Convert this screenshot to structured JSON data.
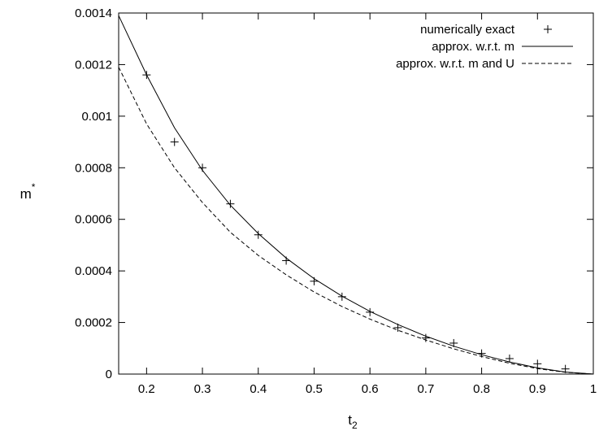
{
  "chart_data": {
    "type": "line",
    "xlabel": "t2",
    "ylabel": "m*",
    "xlim": [
      0.15,
      1
    ],
    "ylim": [
      0,
      0.0014
    ],
    "xticks": [
      "0.2",
      "0.3",
      "0.4",
      "0.5",
      "0.6",
      "0.7",
      "0.8",
      "0.9",
      "1"
    ],
    "yticks": [
      "0",
      "0.0002",
      "0.0004",
      "0.0006",
      "0.0008",
      "0.001",
      "0.0012",
      "0.0014"
    ],
    "legend_position": "top-right",
    "grid": false,
    "series": [
      {
        "name": "numerically exact",
        "style": "points-plus",
        "x": [
          0.2,
          0.25,
          0.3,
          0.35,
          0.4,
          0.45,
          0.5,
          0.55,
          0.6,
          0.65,
          0.7,
          0.75,
          0.8,
          0.85,
          0.9,
          0.95
        ],
        "y": [
          0.00116,
          0.0009,
          0.0008,
          0.00066,
          0.00054,
          0.00044,
          0.00036,
          0.0003,
          0.00024,
          0.00018,
          0.00014,
          0.00012,
          8e-05,
          6e-05,
          4e-05,
          2e-05
        ]
      },
      {
        "name": "approx. w.r.t. m",
        "style": "solid",
        "x": [
          0.15,
          0.2,
          0.25,
          0.3,
          0.35,
          0.4,
          0.45,
          0.5,
          0.55,
          0.6,
          0.65,
          0.7,
          0.75,
          0.8,
          0.85,
          0.9,
          0.95,
          1.0
        ],
        "y": [
          0.00139,
          0.00116,
          0.000955,
          0.00079,
          0.000655,
          0.000545,
          0.00045,
          0.00037,
          0.000302,
          0.000243,
          0.000192,
          0.000147,
          0.000108,
          7.5e-05,
          4.7e-05,
          2.4e-05,
          8e-06,
          0.0
        ]
      },
      {
        "name": "approx. w.r.t. m and U",
        "style": "dashed",
        "x": [
          0.15,
          0.2,
          0.25,
          0.3,
          0.35,
          0.4,
          0.45,
          0.5,
          0.55,
          0.6,
          0.65,
          0.7,
          0.75,
          0.8,
          0.85,
          0.9,
          0.95,
          1.0
        ],
        "y": [
          0.00119,
          0.00097,
          0.0008,
          0.000665,
          0.00055,
          0.00046,
          0.000385,
          0.000318,
          0.000262,
          0.000213,
          0.00017,
          0.000132,
          9.8e-05,
          6.8e-05,
          4.2e-05,
          2.1e-05,
          7e-06,
          0.0
        ]
      }
    ]
  }
}
